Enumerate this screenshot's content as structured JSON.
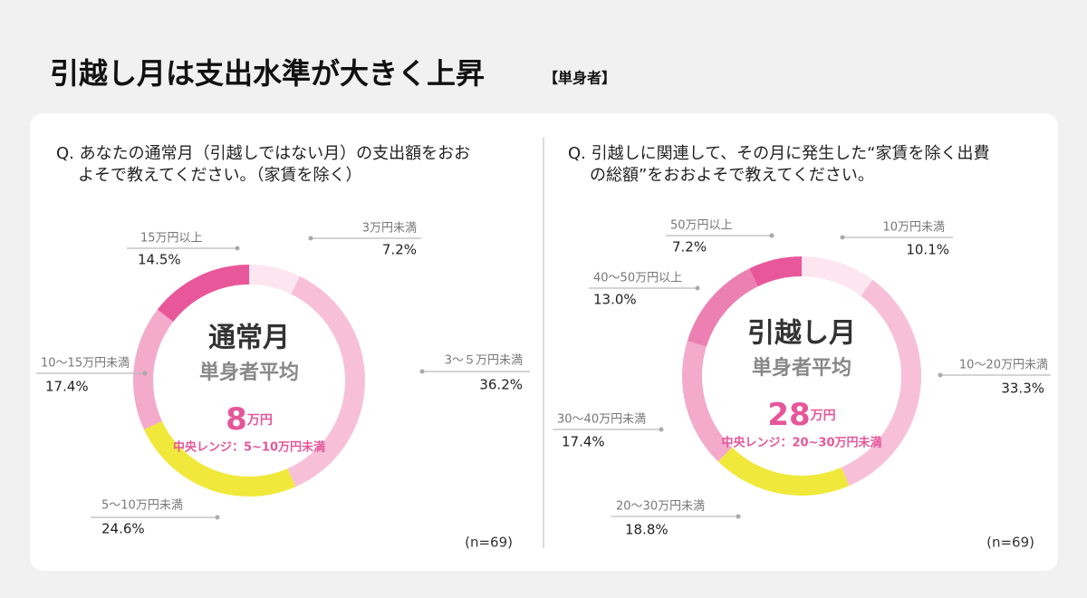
{
  "header": {
    "title": "引越し月は支出水準が大きく上昇",
    "tag": "【単身者】"
  },
  "chart_data": [
    {
      "type": "pie",
      "question": [
        "Q. あなたの通常月（引越しではない月）の支出額をおお",
        "よそで教えてください。（家賃を除く）"
      ],
      "center_title": "通常月",
      "center_subtitle": "単身者平均",
      "median": {
        "value": 8,
        "unit": "万円"
      },
      "median_range": "中央レンジ：5~10万円未満",
      "sample": "(n=69)",
      "categories": [
        "3万円未満",
        "3～５万円未満",
        "5～10万円未満",
        "10～15万円未満",
        "15万円以上"
      ],
      "values": [
        7.2,
        36.2,
        24.6,
        17.4,
        14.5
      ],
      "value_labels": [
        "7.2%",
        "36.2%",
        "24.6%",
        "17.4%",
        "14.5%"
      ],
      "colors": [
        "#fde6f0",
        "#f8c0d8",
        "#f0e93b",
        "#f3aacb",
        "#e9579b"
      ]
    },
    {
      "type": "pie",
      "question": [
        "Q. 引越しに関連して、その月に発生した“家賃を除く出費",
        "の総額”をおおよそで教えてください。"
      ],
      "center_title": "引越し月",
      "center_subtitle": "単身者平均",
      "median": {
        "value": 28,
        "unit": "万円"
      },
      "median_range": "中央レンジ：20~30万円未満",
      "sample": "(n=69)",
      "categories": [
        "10万円未満",
        "10～20万円未満",
        "20～30万円未満",
        "30～40万円未満",
        "40～50万円以上",
        "50万円以上"
      ],
      "values": [
        10.1,
        33.3,
        18.8,
        17.4,
        13.0,
        7.2
      ],
      "value_labels": [
        "10.1%",
        "33.3%",
        "18.8%",
        "17.4%",
        "13.0%",
        "7.2%"
      ],
      "colors": [
        "#fde6f0",
        "#f8c0d8",
        "#f0e93b",
        "#f3aacb",
        "#ec80b2",
        "#e9579b"
      ]
    }
  ]
}
